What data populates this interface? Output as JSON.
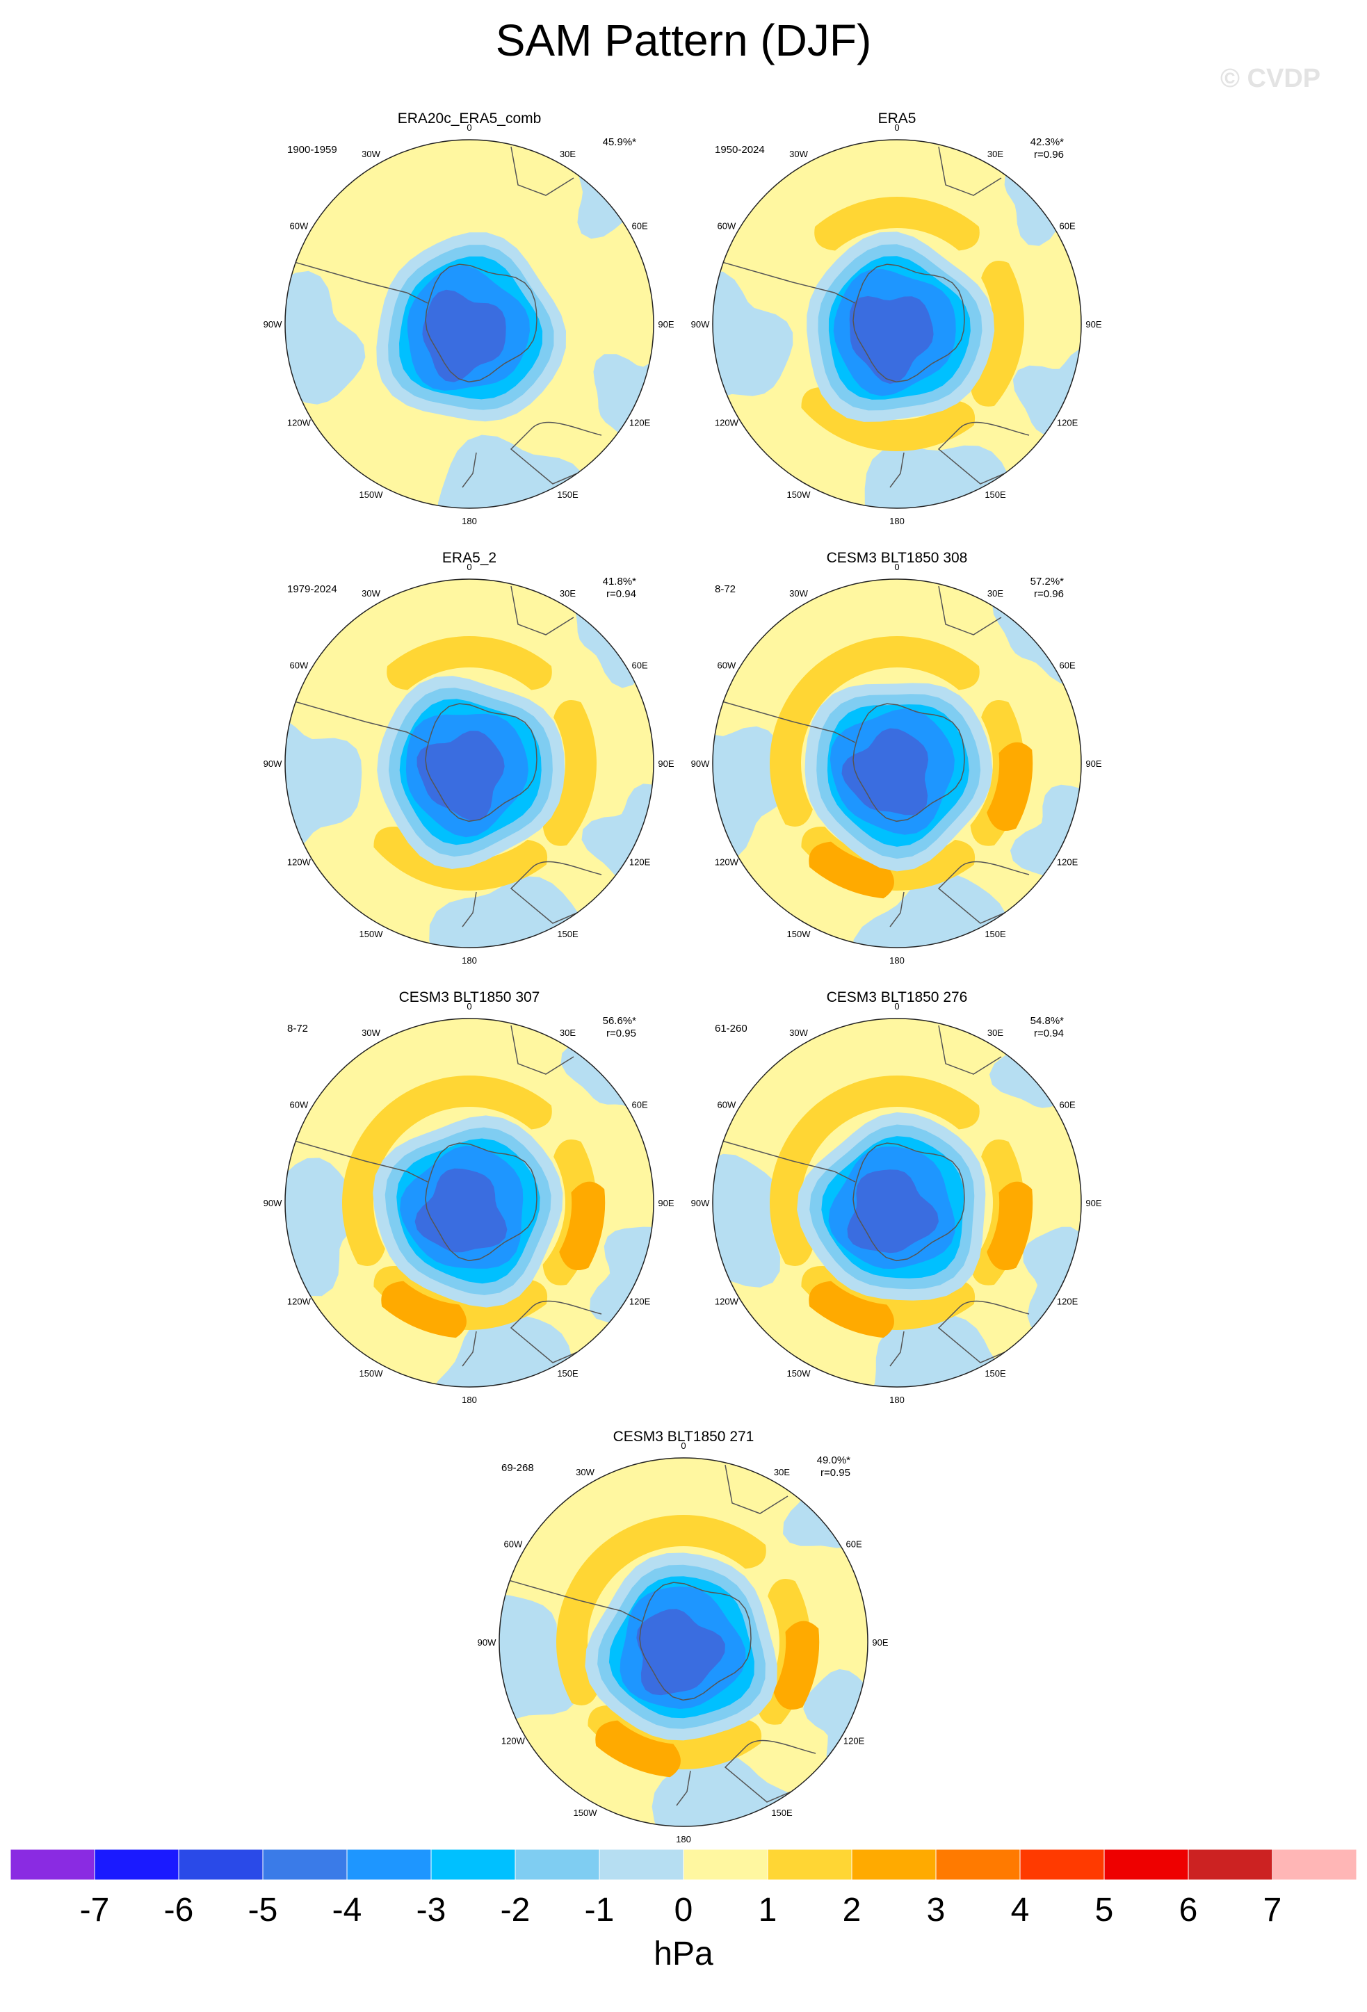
{
  "title": "SAM Pattern (DJF)",
  "watermark": "© CVDP",
  "lon_labels": [
    "0",
    "30E",
    "60E",
    "90E",
    "120E",
    "150E",
    "180",
    "150W",
    "120W",
    "90W",
    "60W",
    "30W"
  ],
  "panels": [
    {
      "title": "ERA20c_ERA5_comb",
      "years": "1900-1959",
      "pct": "45.9%*",
      "r": "",
      "pos_strength": 0.15,
      "neg_strength": 0.85
    },
    {
      "title": "ERA5",
      "years": "1950-2024",
      "pct": "42.3%*",
      "r": "r=0.96",
      "pos_strength": 0.45,
      "neg_strength": 0.85
    },
    {
      "title": "ERA5_2",
      "years": "1979-2024",
      "pct": "41.8%*",
      "r": "r=0.94",
      "pos_strength": 0.5,
      "neg_strength": 0.85
    },
    {
      "title": "CESM3 BLT1850 308",
      "years": "8-72",
      "pct": "57.2%*",
      "r": "r=0.96",
      "pos_strength": 0.85,
      "neg_strength": 0.95
    },
    {
      "title": "CESM3 BLT1850 307",
      "years": "8-72",
      "pct": "56.6%*",
      "r": "r=0.95",
      "pos_strength": 0.95,
      "neg_strength": 0.95
    },
    {
      "title": "CESM3 BLT1850 276",
      "years": "61-260",
      "pct": "54.8%*",
      "r": "r=0.94",
      "pos_strength": 0.9,
      "neg_strength": 0.95
    },
    {
      "title": "CESM3 BLT1850 271",
      "years": "69-268",
      "pct": "49.0%*",
      "r": "r=0.95",
      "pos_strength": 0.8,
      "neg_strength": 0.9
    }
  ],
  "colorbar": {
    "unit": "hPa",
    "ticks": [
      "-7",
      "-6",
      "-5",
      "-4",
      "-3",
      "-2",
      "-1",
      "0",
      "1",
      "2",
      "3",
      "4",
      "5",
      "6",
      "7"
    ],
    "colors": [
      "#8a2be2",
      "#1a1aff",
      "#2a4ae8",
      "#3a7be8",
      "#1e96ff",
      "#00c0ff",
      "#7fcdf2",
      "#b6def2",
      "#fff7a0",
      "#ffd634",
      "#ffaa00",
      "#ff7a00",
      "#ff3a00",
      "#ee0000",
      "#cc2222",
      "#ffb6b6"
    ]
  },
  "legend_colors": {
    "neg5": "#3a6de0",
    "neg4": "#1e96ff",
    "neg3": "#00c0ff",
    "neg2": "#7fcdf2",
    "neg1": "#b6def2",
    "zero": "#fff7a0",
    "pos1": "#ffd634",
    "pos2": "#ffaa00",
    "coast": "#555555"
  }
}
